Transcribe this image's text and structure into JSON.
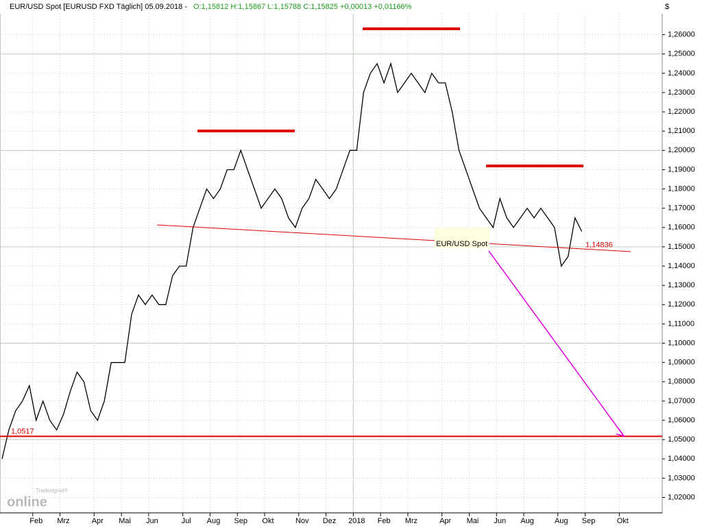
{
  "header": {
    "title": "EUR/USD Spot [EURUSD FXD  Täglich] 05.09.2018 -",
    "quote": "O:1,15812 H:1,15867 L:1,15788 C:1,15825 +0,00013 +0,01166%",
    "currency": "$",
    "logo": "online",
    "logo_brand": "Tradesignal®"
  },
  "chart_data": {
    "type": "line",
    "color": "#000000",
    "categories": [
      null,
      null,
      null,
      null,
      null,
      "Feb",
      null,
      null,
      null,
      "Mrz",
      null,
      null,
      null,
      null,
      "Apr",
      null,
      null,
      null,
      "Mai",
      null,
      null,
      null,
      "Jun",
      null,
      null,
      null,
      null,
      "Jul",
      null,
      null,
      null,
      "Aug",
      null,
      null,
      null,
      "Sep",
      null,
      null,
      null,
      "Okt",
      null,
      null,
      null,
      null,
      "Nov",
      null,
      null,
      null,
      "Dez",
      null,
      null,
      null,
      "2018",
      null,
      null,
      null,
      "Feb",
      null,
      null,
      null,
      "Mrz",
      null,
      null,
      null,
      null,
      "Apr",
      null,
      null,
      null,
      "Mai",
      null,
      null,
      null,
      "Jun",
      null,
      null,
      null,
      "Aug",
      null,
      null,
      null,
      null,
      "Aug",
      null,
      null,
      null,
      "Sep",
      null,
      null,
      null,
      null,
      "Okt",
      null,
      null,
      null,
      null,
      null
    ],
    "series": [
      {
        "name": "EUR/USD Spot",
        "color": "#000000",
        "values": [
          1.04,
          1.055,
          1.065,
          1.07,
          1.078,
          1.06,
          1.07,
          1.06,
          1.055,
          1.063,
          1.075,
          1.085,
          1.08,
          1.065,
          1.06,
          1.07,
          1.09,
          1.09,
          1.09,
          1.115,
          1.125,
          1.12,
          1.125,
          1.12,
          1.12,
          1.135,
          1.14,
          1.14,
          1.16,
          1.17,
          1.18,
          1.175,
          1.18,
          1.19,
          1.19,
          1.2,
          1.19,
          1.18,
          1.17,
          1.175,
          1.18,
          1.175,
          1.165,
          1.16,
          1.17,
          1.175,
          1.185,
          1.18,
          1.175,
          1.18,
          1.19,
          1.2,
          1.2,
          1.23,
          1.24,
          1.245,
          1.235,
          1.245,
          1.23,
          1.235,
          1.24,
          1.235,
          1.23,
          1.24,
          1.235,
          1.235,
          1.22,
          1.2,
          1.19,
          1.18,
          1.17,
          1.165,
          1.16,
          1.175,
          1.165,
          1.16,
          1.165,
          1.17,
          1.165,
          1.17,
          1.165,
          1.16,
          1.14,
          1.145,
          1.165,
          1.158,
          null,
          null,
          null,
          null,
          null,
          null,
          null,
          null,
          null,
          null,
          null
        ]
      }
    ],
    "ylim": [
      1.012,
      1.278
    ],
    "yticks": [
      {
        "value": 1.02,
        "label": "1,02000"
      },
      {
        "value": 1.03,
        "label": "1,03000"
      },
      {
        "value": 1.04,
        "label": "1,04000"
      },
      {
        "value": 1.05,
        "label": "1,05000"
      },
      {
        "value": 1.06,
        "label": "1,06000"
      },
      {
        "value": 1.07,
        "label": "1,07000"
      },
      {
        "value": 1.08,
        "label": "1,08000"
      },
      {
        "value": 1.09,
        "label": "1,09000"
      },
      {
        "value": 1.1,
        "label": "1,10000"
      },
      {
        "value": 1.11,
        "label": "1,11000"
      },
      {
        "value": 1.12,
        "label": "1,12000"
      },
      {
        "value": 1.13,
        "label": "1,13000"
      },
      {
        "value": 1.14,
        "label": "1,14000"
      },
      {
        "value": 1.15,
        "label": "1,15000"
      },
      {
        "value": 1.16,
        "label": "1,16000"
      },
      {
        "value": 1.17,
        "label": "1,17000"
      },
      {
        "value": 1.18,
        "label": "1,18000"
      },
      {
        "value": 1.19,
        "label": "1,19000"
      },
      {
        "value": 1.2,
        "label": "1,20000"
      },
      {
        "value": 1.21,
        "label": "1,21000"
      },
      {
        "value": 1.22,
        "label": "1,22000"
      },
      {
        "value": 1.23,
        "label": "1,23000"
      },
      {
        "value": 1.24,
        "label": "1,24000"
      },
      {
        "value": 1.25,
        "label": "1,25000"
      },
      {
        "value": 1.26,
        "label": "1,26000"
      }
    ],
    "grid": true,
    "levels": [
      {
        "value": 1.0517,
        "label": "1,0517",
        "color": "#e00000"
      },
      {
        "value": 1.14836,
        "label": "1,14836",
        "color": "#e00000"
      }
    ]
  }
}
